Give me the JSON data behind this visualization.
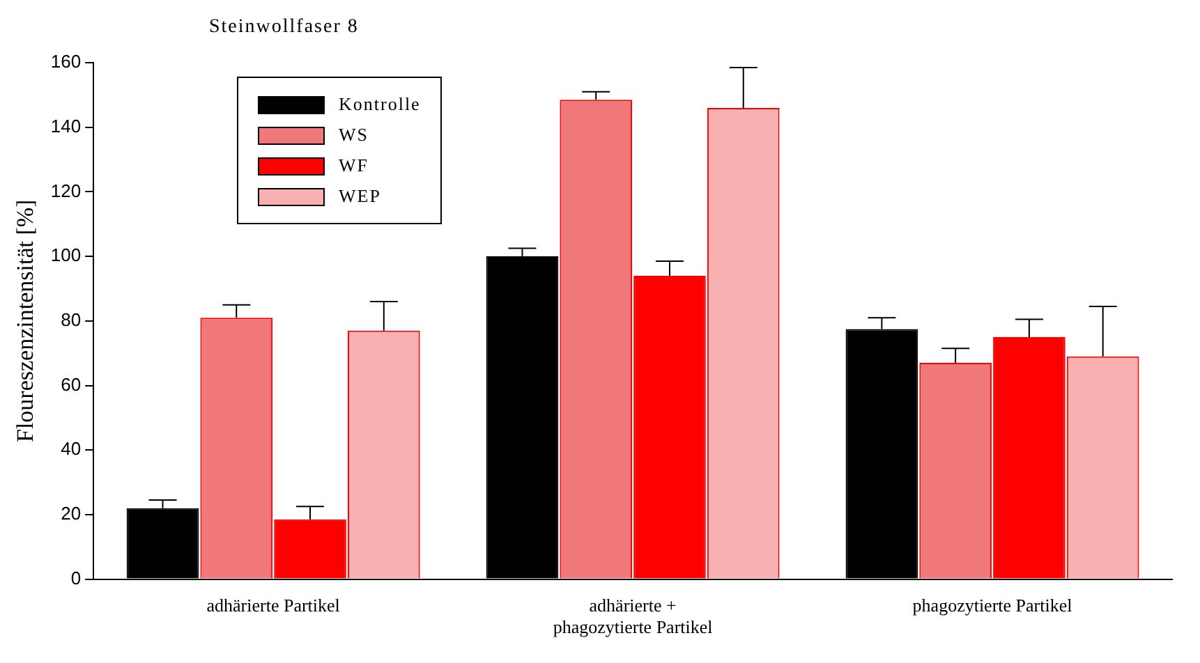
{
  "chart_data": {
    "type": "bar",
    "title": "Steinwollfaser 8",
    "ylabel": "Floureszenzintensität [%]",
    "categories": [
      "adhärierte Partikel",
      "adhärierte + phagozytierte Partikel",
      "phagozytierte Partikel"
    ],
    "series": [
      {
        "name": "Kontrolle",
        "color": "#000000",
        "values": [
          22,
          100,
          77.5
        ],
        "errors": [
          [
            22,
            24.5
          ],
          [
            100,
            102.5
          ],
          [
            77.5,
            81
          ]
        ]
      },
      {
        "name": "WS",
        "color": "#f07878",
        "values": [
          81,
          148.5,
          67
        ],
        "errors": [
          [
            81,
            85
          ],
          [
            148.5,
            151
          ],
          [
            67,
            71.5
          ]
        ]
      },
      {
        "name": "WF",
        "color": "#ff0000",
        "values": [
          18.5,
          94,
          75
        ],
        "errors": [
          [
            18.5,
            22.5
          ],
          [
            94,
            98.5
          ],
          [
            75,
            80.5
          ]
        ]
      },
      {
        "name": "WEP",
        "color": "#f8b0b0",
        "values": [
          77,
          146,
          69
        ],
        "errors": [
          [
            77,
            86
          ],
          [
            146,
            158.5
          ],
          [
            69,
            84.5
          ]
        ]
      }
    ],
    "ylim": [
      0,
      160
    ],
    "yticks": [
      0,
      20,
      40,
      60,
      80,
      100,
      120,
      140,
      160
    ],
    "grid": false,
    "legend": "top left"
  }
}
